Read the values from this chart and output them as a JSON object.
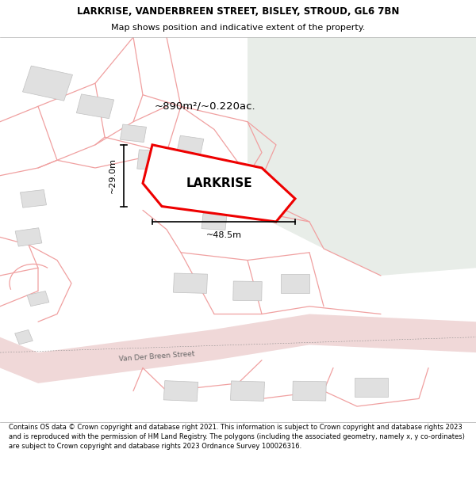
{
  "title": "LARKRISE, VANDERBREEN STREET, BISLEY, STROUD, GL6 7BN",
  "subtitle": "Map shows position and indicative extent of the property.",
  "footer": "Contains OS data © Crown copyright and database right 2021. This information is subject to Crown copyright and database rights 2023 and is reproduced with the permission of HM Land Registry. The polygons (including the associated geometry, namely x, y co-ordinates) are subject to Crown copyright and database rights 2023 Ordnance Survey 100026316.",
  "area_label": "~890m²/~0.220ac.",
  "property_label": "LARKRISE",
  "dim_width": "~48.5m",
  "dim_height": "~29.0m",
  "street_label": "Van Der Breen Street",
  "map_bg": "#ffffff",
  "green_color": "#e8ede8",
  "road_fill": "#f5e0e0",
  "building_fill": "#e0e0e0",
  "building_edge": "#c0c0c0",
  "plot_line_color": "#f0a0a0",
  "property_fill": "#ffffff",
  "property_edge": "#ee0000",
  "dim_color": "#000000",
  "title_fontsize": 8.5,
  "subtitle_fontsize": 8,
  "footer_fontsize": 6.0
}
